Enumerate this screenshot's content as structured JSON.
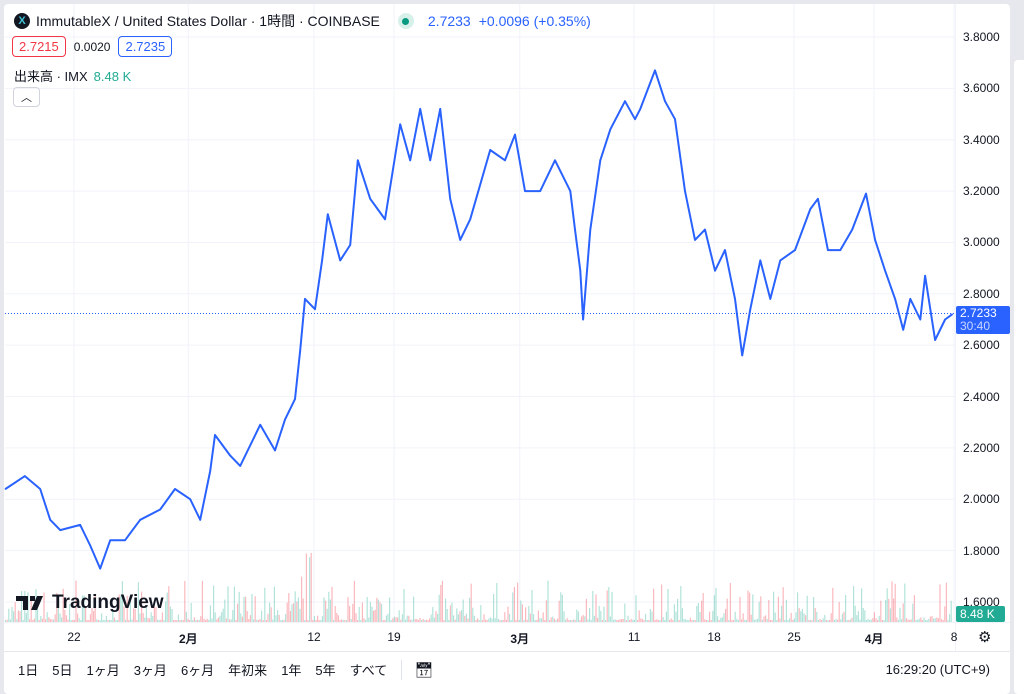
{
  "header": {
    "logo_text": "X",
    "title": "ImmutableX / United States Dollar · 1時間 · COINBASE",
    "last": "2.7233",
    "change": "+0.0096 (+0.35%)",
    "status_icon": "market-open-dot"
  },
  "quotes": {
    "bid": "2.7215",
    "spread": "0.0020",
    "ask": "2.7235"
  },
  "volume_legend": {
    "label": "出来高 · IMX",
    "value": "8.48 K"
  },
  "watermark": "TradingView",
  "price_tag": {
    "price": "2.7233",
    "countdown": "30:40"
  },
  "volume_tag": "8.48 K",
  "ranges": [
    "1日",
    "5日",
    "1ヶ月",
    "3ヶ月",
    "6ヶ月",
    "年初来",
    "1年",
    "5年",
    "すべて"
  ],
  "clock": "16:29:20 (UTC+9)",
  "colors": {
    "line": "#2962ff",
    "up": "#22ab94",
    "down": "#f23645",
    "grid": "#f0f3fa"
  },
  "chart_data": {
    "type": "line",
    "ylim": [
      1.6,
      3.8
    ],
    "yticks": [
      "3.8000",
      "3.6000",
      "3.4000",
      "3.2000",
      "3.0000",
      "2.8000",
      "2.6000",
      "2.4000",
      "2.2000",
      "2.0000",
      "1.8000",
      "1.6000"
    ],
    "xticks": [
      {
        "label": "22",
        "date": "01-22 00:00"
      },
      {
        "label": "2月",
        "date": "02-01 00:00",
        "bold": true
      },
      {
        "label": "12",
        "date": "02-12 00:00"
      },
      {
        "label": "19",
        "date": "02-19 00:00"
      },
      {
        "label": "3月",
        "date": "03-01 00:00",
        "bold": true
      },
      {
        "label": "11",
        "date": "03-11 00:00"
      },
      {
        "label": "18",
        "date": "03-18 00:00"
      },
      {
        "label": "25",
        "date": "03-25 00:00"
      },
      {
        "label": "4月",
        "date": "04-01 00:00",
        "bold": true
      },
      {
        "label": "8",
        "date": "04-08 00:00"
      }
    ],
    "grid": true,
    "last_price_line": 2.7233,
    "series": [
      {
        "x": [
          "01-16 00:00",
          "01-17 17:00",
          "01-19 01:00",
          "01-19 22:00",
          "01-20 19:00",
          "01-22 13:00",
          "01-23 10:00",
          "01-24 07:00",
          "01-25 04:00",
          "01-26 11:00",
          "01-27 19:00",
          "01-29 13:00",
          "01-30 20:00",
          "02-01 04:00",
          "02-02 01:00",
          "02-02 22:00",
          "02-03 08:00",
          "02-04 16:00",
          "02-05 13:00",
          "02-07 07:00",
          "02-08 14:00",
          "02-09 11:00",
          "02-10 08:00",
          "02-10 19:00",
          "02-11 05:00",
          "02-12 02:00",
          "02-12 17:00",
          "02-13 05:00",
          "02-14 07:00",
          "02-15 04:00",
          "02-15 20:00",
          "02-16 22:00",
          "02-18 05:00",
          "02-19 13:00",
          "02-20 10:00",
          "02-21 07:00",
          "02-22 04:00",
          "02-23 01:00",
          "02-23 22:00",
          "02-24 19:00",
          "02-25 16:00",
          "02-27 10:00",
          "02-28 17:00",
          "02-29 14:00",
          "03-01 11:00",
          "03-02 19:00",
          "03-04 02:00",
          "03-05 10:00",
          "03-05 20:00",
          "03-06 07:00",
          "03-06 13:00",
          "03-07 04:00",
          "03-08 01:00",
          "03-08 22:00",
          "03-10 05:00",
          "03-11 02:00",
          "03-11 13:00",
          "03-12 20:00",
          "03-13 17:00",
          "03-14 14:00",
          "03-15 11:00",
          "03-16 08:00",
          "03-17 05:00",
          "03-18 02:00",
          "03-18 23:00",
          "03-19 20:00",
          "03-20 11:00",
          "03-21 04:00",
          "03-22 01:00",
          "03-22 22:00",
          "03-23 19:00",
          "03-25 02:00",
          "03-26 10:00",
          "03-27 02:00",
          "03-27 23:00",
          "03-29 01:00",
          "03-30 02:00",
          "03-31 07:00",
          "04-01 02:00",
          "04-01 23:00",
          "04-02 20:00",
          "04-03 13:00",
          "04-04 04:00",
          "04-05 01:00",
          "04-05 11:00",
          "04-06 08:00",
          "04-07 05:00",
          "04-07 20:00"
        ],
        "y": [
          2.04,
          2.09,
          2.04,
          1.92,
          1.88,
          1.9,
          1.82,
          1.73,
          1.84,
          1.84,
          1.92,
          1.96,
          2.04,
          2.0,
          1.92,
          2.11,
          2.25,
          2.17,
          2.13,
          2.29,
          2.19,
          2.31,
          2.39,
          2.58,
          2.78,
          2.74,
          2.93,
          3.11,
          2.93,
          2.99,
          3.32,
          3.17,
          3.09,
          3.46,
          3.32,
          3.52,
          3.32,
          3.52,
          3.17,
          3.01,
          3.09,
          3.36,
          3.32,
          3.42,
          3.2,
          3.2,
          3.32,
          3.2,
          3.05,
          2.89,
          2.7,
          3.05,
          3.32,
          3.44,
          3.55,
          3.48,
          3.52,
          3.67,
          3.55,
          3.48,
          3.2,
          3.01,
          3.05,
          2.89,
          2.97,
          2.78,
          2.56,
          2.74,
          2.93,
          2.78,
          2.93,
          2.97,
          3.13,
          3.17,
          2.97,
          2.97,
          3.05,
          3.19,
          3.01,
          2.89,
          2.78,
          2.66,
          2.78,
          2.7,
          2.87,
          2.62,
          2.7,
          2.72
        ]
      }
    ]
  }
}
